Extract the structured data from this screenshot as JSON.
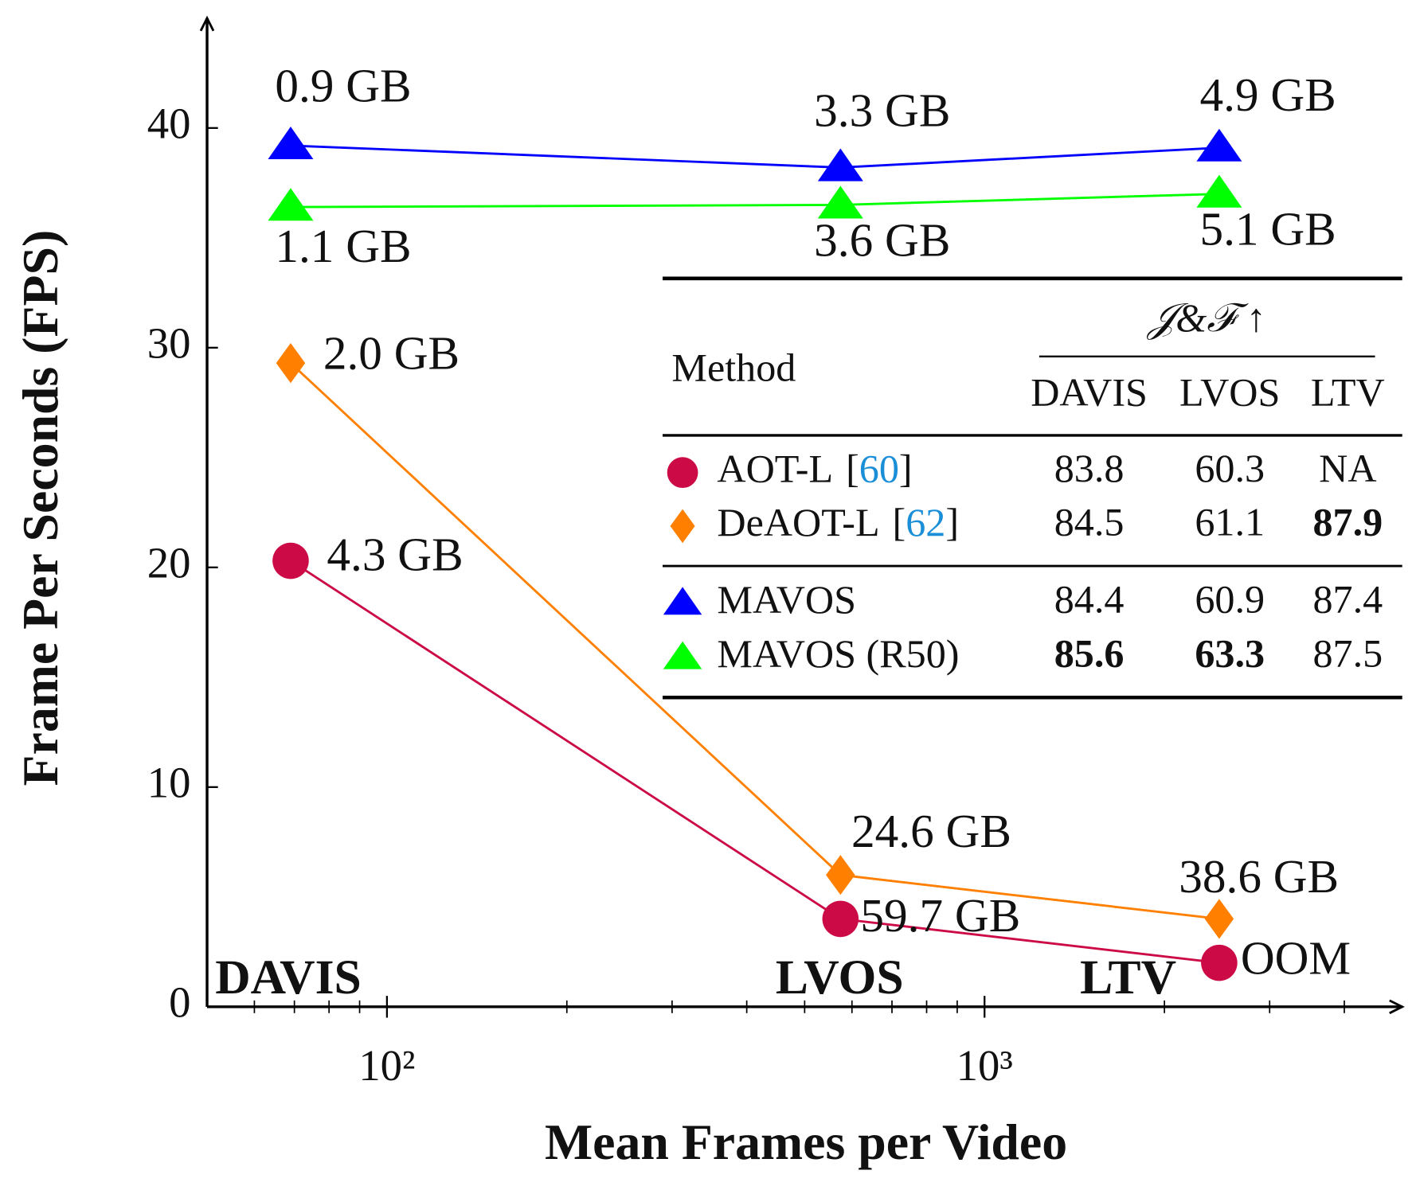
{
  "chart_data": {
    "type": "line",
    "x_label": "Mean Frames per Video",
    "y_label": "Frame Per Seconds (FPS)",
    "x_scale": "log",
    "x": [
      69,
      574,
      2470
    ],
    "datasets": [
      "DAVIS",
      "LVOS",
      "LTV"
    ],
    "series": [
      {
        "name": "AOT-L",
        "cite": "60",
        "color": "#cc0a46",
        "marker": "circle",
        "values": [
          20.3,
          4.0,
          2.0
        ],
        "point_labels": [
          "4.3 GB",
          "59.7 GB",
          "OOM"
        ],
        "scores": [
          "83.8",
          "60.3",
          "NA"
        ],
        "bold": [
          false,
          false,
          false
        ]
      },
      {
        "name": "DeAOT-L",
        "cite": "62",
        "color": "#ff8000",
        "marker": "diamond",
        "values": [
          29.3,
          6.0,
          4.0
        ],
        "point_labels": [
          "2.0 GB",
          "24.6 GB",
          "38.6 GB"
        ],
        "scores": [
          "84.5",
          "61.1",
          "87.9"
        ],
        "bold": [
          false,
          false,
          true
        ]
      },
      {
        "name": "MAVOS",
        "color": "#0000ff",
        "marker": "triangle",
        "values": [
          39.2,
          38.2,
          39.1
        ],
        "point_labels": [
          "0.9 GB",
          "3.3 GB",
          "4.9 GB"
        ],
        "scores": [
          "84.4",
          "60.9",
          "87.4"
        ],
        "bold": [
          false,
          false,
          false
        ]
      },
      {
        "name": "MAVOS (R50)",
        "color": "#00ff00",
        "marker": "triangle",
        "values": [
          36.4,
          36.5,
          37.0
        ],
        "point_labels": [
          "1.1 GB",
          "3.6 GB",
          "5.1 GB"
        ],
        "scores": [
          "85.6",
          "63.3",
          "87.5"
        ],
        "bold": [
          true,
          true,
          false
        ]
      }
    ],
    "xlim": [
      50,
      5000
    ],
    "xticks": [
      {
        "value": 100,
        "label": "10²"
      },
      {
        "value": 1000,
        "label": "10³"
      }
    ],
    "xminor": [
      60,
      70,
      80,
      90,
      200,
      300,
      400,
      500,
      600,
      700,
      800,
      900,
      2000,
      3000,
      4000
    ],
    "ylim": [
      0,
      45
    ],
    "yticks": [
      0,
      10,
      20,
      30,
      40
    ],
    "table": {
      "method_header": "Method",
      "metric_header": "𝒥&ℱ ↑",
      "columns": [
        "DAVIS",
        "LVOS",
        "LTV"
      ]
    }
  }
}
